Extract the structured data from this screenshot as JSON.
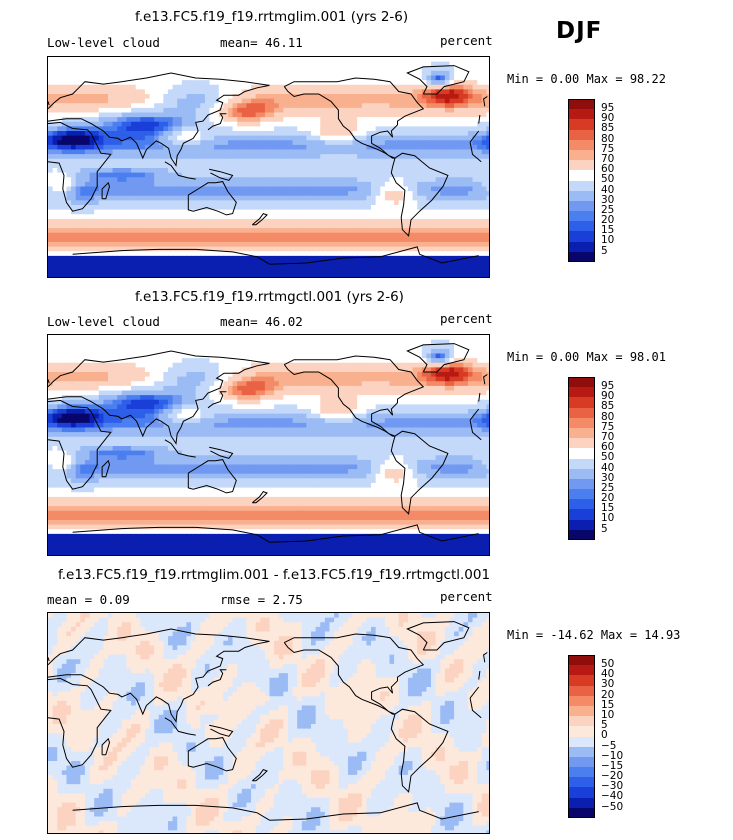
{
  "season": "DJF",
  "panels": [
    {
      "title": "f.e13.FC5.f19_f19.rrtmglim.001 (yrs 2-6)",
      "variable": "Low-level cloud",
      "stat_text": "mean= 46.11",
      "units": "percent",
      "minmax_text": "Min = 0.00 Max = 98.22"
    },
    {
      "title": "f.e13.FC5.f19_f19.rrtmgctl.001 (yrs 2-6)",
      "variable": "Low-level cloud",
      "stat_text": "mean= 46.02",
      "units": "percent",
      "minmax_text": "Min = 0.00 Max = 98.01"
    },
    {
      "title": "f.e13.FC5.f19_f19.rrtmglim.001 - f.e13.FC5.f19_f19.rrtmgctl.001",
      "stat_text": "mean = 0.09",
      "rmse_text": "rmse = 2.75",
      "units": "percent",
      "minmax_text": "Min = -14.62 Max = 14.93"
    }
  ],
  "chart_data": [
    {
      "type": "heatmap",
      "title": "f.e13.FC5.f19_f19.rrtmglim.001 (yrs 2-6)",
      "variable": "Low-level cloud",
      "units": "percent",
      "mean": 46.11,
      "min": 0.0,
      "max": 98.22,
      "levels": [
        5,
        10,
        15,
        20,
        25,
        30,
        40,
        50,
        60,
        70,
        75,
        80,
        85,
        90,
        95
      ],
      "colors": [
        "#08066b",
        "#0a1fb0",
        "#1a3fd8",
        "#2e5fe8",
        "#4b7ff0",
        "#7199f2",
        "#9bbbf5",
        "#c4d9fa",
        "#ffffff",
        "#fbd3c0",
        "#f9b08f",
        "#f48a66",
        "#ea6244",
        "#d83b24",
        "#b71a12",
        "#8f0d0a"
      ]
    },
    {
      "type": "heatmap",
      "title": "f.e13.FC5.f19_f19.rrtmgctl.001 (yrs 2-6)",
      "variable": "Low-level cloud",
      "units": "percent",
      "mean": 46.02,
      "min": 0.0,
      "max": 98.01,
      "levels": [
        5,
        10,
        15,
        20,
        25,
        30,
        40,
        50,
        60,
        70,
        75,
        80,
        85,
        90,
        95
      ],
      "colors": [
        "#08066b",
        "#0a1fb0",
        "#1a3fd8",
        "#2e5fe8",
        "#4b7ff0",
        "#7199f2",
        "#9bbbf5",
        "#c4d9fa",
        "#ffffff",
        "#fbd3c0",
        "#f9b08f",
        "#f48a66",
        "#ea6244",
        "#d83b24",
        "#b71a12",
        "#8f0d0a"
      ]
    },
    {
      "type": "heatmap",
      "title": "f.e13.FC5.f19_f19.rrtmglim.001 - f.e13.FC5.f19_f19.rrtmgctl.001",
      "units": "percent",
      "mean": 0.09,
      "rmse": 2.75,
      "min": -14.62,
      "max": 14.93,
      "levels": [
        -50,
        -40,
        -30,
        -20,
        -15,
        -10,
        -5,
        0,
        5,
        10,
        15,
        20,
        30,
        40,
        50
      ],
      "colors": [
        "#08066b",
        "#0a1fb0",
        "#1a3fd8",
        "#2e5fe8",
        "#4b7ff0",
        "#7199f2",
        "#9bbbf5",
        "#dbe8fc",
        "#fde9dc",
        "#fbd3c0",
        "#f9b08f",
        "#f48a66",
        "#ea6244",
        "#d83b24",
        "#b71a12",
        "#8f0d0a"
      ]
    }
  ]
}
